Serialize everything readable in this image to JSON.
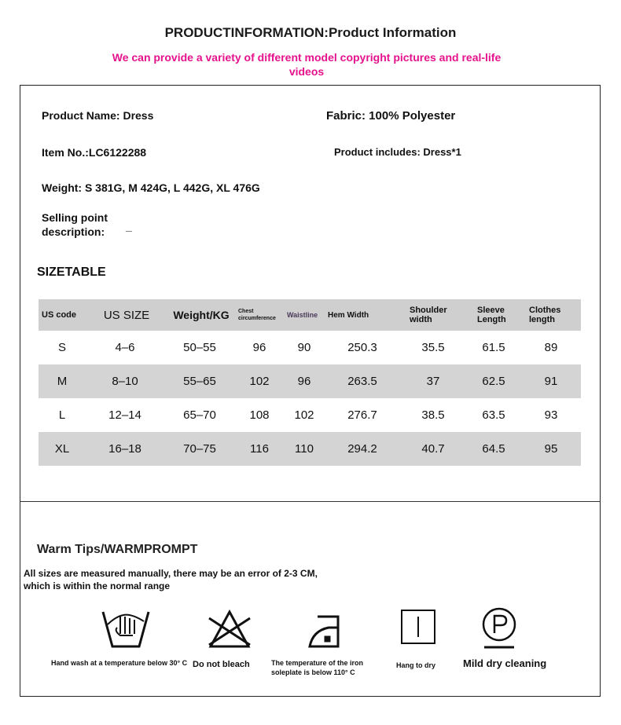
{
  "header": {
    "title": "PRODUCTINFORMATION:Product Information",
    "subtitle": "We can provide a variety of different model copyright pictures and real-life videos"
  },
  "info": {
    "name": "Product Name: Dress",
    "fabric": "Fabric: 100% Polyester",
    "item": "Item No.:LC6122288",
    "includes": "Product includes: Dress*1",
    "weight": "Weight: S 381G, M 424G, L 442G, XL 476G",
    "selling_label": "Selling point description:",
    "selling_value": "_"
  },
  "size_table": {
    "title": "SIZETABLE",
    "headers": [
      "US code",
      "US SIZE",
      "Weight/KG",
      "Chest circumference",
      "Waistline",
      "Hem Width",
      "Shoulder width",
      "Sleeve Length",
      "Clothes length"
    ],
    "rows": [
      [
        "S",
        "4–6",
        "50–55",
        "96",
        "90",
        "250.3",
        "35.5",
        "61.5",
        "89"
      ],
      [
        "M",
        "8–10",
        "55–65",
        "102",
        "96",
        "263.5",
        "37",
        "62.5",
        "91"
      ],
      [
        "L",
        "12–14",
        "65–70",
        "108",
        "102",
        "276.7",
        "38.5",
        "63.5",
        "93"
      ],
      [
        "XL",
        "16–18",
        "70–75",
        "116",
        "110",
        "294.2",
        "40.7",
        "64.5",
        "95"
      ]
    ]
  },
  "tips": {
    "title": "Warm Tips/WARMPROMPT",
    "note": "All sizes are measured manually, there may be an error of 2-3 CM, which is within the normal range",
    "care": [
      {
        "icon": "hand-wash-icon",
        "label": "Hand wash at a temperature below 30° C"
      },
      {
        "icon": "no-bleach-icon",
        "label": "Do not bleach"
      },
      {
        "icon": "iron-icon",
        "label": "The temperature of the iron soleplate is below 110° C"
      },
      {
        "icon": "hang-dry-icon",
        "label": "Hang to dry"
      },
      {
        "icon": "dry-clean-icon",
        "label": "Mild dry cleaning"
      }
    ]
  }
}
